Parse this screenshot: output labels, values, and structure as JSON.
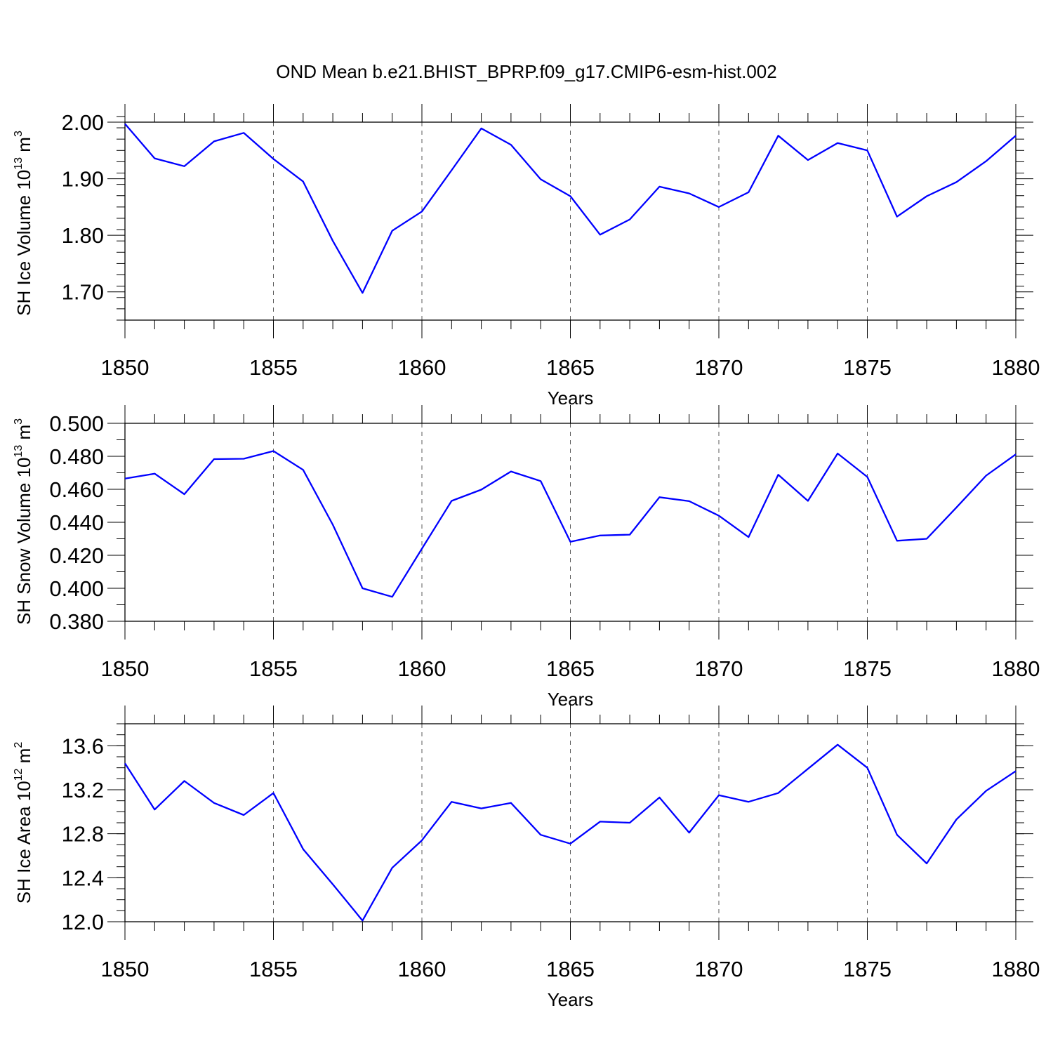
{
  "figure_title": "OND Mean b.e21.BHIST_BPRP.f09_g17.CMIP6-esm-hist.002",
  "chart_data": [
    {
      "type": "line",
      "title": "OND Mean b.e21.BHIST_BPRP.f09_g17.CMIP6-esm-hist.002",
      "xlabel": "Years",
      "ylabel": {
        "base": "SH Ice Volume 10",
        "exp": "13",
        "unit": " m",
        "unit_exp": "3"
      },
      "xlim": [
        1850,
        1880
      ],
      "ylim": [
        1.65,
        2.0
      ],
      "x_ticks": [
        1850,
        1855,
        1860,
        1865,
        1870,
        1875,
        1880
      ],
      "x_tick_labels": [
        "1850",
        "1855",
        "1860",
        "1865",
        "1870",
        "1875",
        "1880"
      ],
      "y_ticks": [
        1.7,
        1.8,
        1.9,
        2.0
      ],
      "y_tick_labels": [
        "1.70",
        "1.80",
        "1.90",
        "2.00"
      ],
      "grid": "dashed vertical lines every 5 years",
      "color": "#0000ff",
      "series": [
        {
          "name": "SH Ice Volume",
          "x": [
            1850,
            1851,
            1852,
            1853,
            1854,
            1855,
            1856,
            1857,
            1858,
            1859,
            1860,
            1861,
            1862,
            1863,
            1864,
            1865,
            1866,
            1867,
            1868,
            1869,
            1870,
            1871,
            1872,
            1873,
            1874,
            1875,
            1876,
            1877,
            1878,
            1879,
            1880
          ],
          "values": [
            1.997,
            1.936,
            1.922,
            1.966,
            1.981,
            1.935,
            1.895,
            1.79,
            1.698,
            1.808,
            1.842,
            1.915,
            1.989,
            1.96,
            1.899,
            1.869,
            1.801,
            1.828,
            1.886,
            1.874,
            1.85,
            1.876,
            1.976,
            1.933,
            1.963,
            1.95,
            1.833,
            1.869,
            1.894,
            1.931,
            1.976
          ]
        }
      ]
    },
    {
      "type": "line",
      "xlabel": "Years",
      "ylabel": {
        "base": "SH Snow Volume 10",
        "exp": "13",
        "unit": " m",
        "unit_exp": "3"
      },
      "xlim": [
        1850,
        1880
      ],
      "ylim": [
        0.38,
        0.5
      ],
      "x_ticks": [
        1850,
        1855,
        1860,
        1865,
        1870,
        1875,
        1880
      ],
      "x_tick_labels": [
        "1850",
        "1855",
        "1860",
        "1865",
        "1870",
        "1875",
        "1880"
      ],
      "y_ticks": [
        0.38,
        0.4,
        0.42,
        0.44,
        0.46,
        0.48,
        0.5
      ],
      "y_tick_labels": [
        "0.380",
        "0.400",
        "0.420",
        "0.440",
        "0.460",
        "0.480",
        "0.500"
      ],
      "grid": "dashed vertical lines every 5 years",
      "color": "#0000ff",
      "series": [
        {
          "name": "SH Snow Volume",
          "x": [
            1850,
            1851,
            1852,
            1853,
            1854,
            1855,
            1856,
            1857,
            1858,
            1859,
            1860,
            1861,
            1862,
            1863,
            1864,
            1865,
            1866,
            1867,
            1868,
            1869,
            1870,
            1871,
            1872,
            1873,
            1874,
            1875,
            1876,
            1877,
            1878,
            1879,
            1880
          ],
          "values": [
            0.4665,
            0.4695,
            0.457,
            0.4783,
            0.4785,
            0.4832,
            0.4718,
            0.4385,
            0.4,
            0.3948,
            0.424,
            0.453,
            0.4598,
            0.4708,
            0.465,
            0.4282,
            0.432,
            0.4325,
            0.4552,
            0.4528,
            0.444,
            0.431,
            0.4688,
            0.453,
            0.4817,
            0.4675,
            0.4288,
            0.43,
            0.449,
            0.4683,
            0.4812
          ]
        }
      ]
    },
    {
      "type": "line",
      "xlabel": "Years",
      "ylabel": {
        "base": "SH Ice Area 10",
        "exp": "12",
        "unit": " m",
        "unit_exp": "2"
      },
      "xlim": [
        1850,
        1880
      ],
      "ylim": [
        12.0,
        13.8
      ],
      "x_ticks": [
        1850,
        1855,
        1860,
        1865,
        1870,
        1875,
        1880
      ],
      "x_tick_labels": [
        "1850",
        "1855",
        "1860",
        "1865",
        "1870",
        "1875",
        "1880"
      ],
      "y_ticks": [
        12.0,
        12.4,
        12.8,
        13.2,
        13.6
      ],
      "y_tick_labels": [
        "12.0",
        "12.4",
        "12.8",
        "13.2",
        "13.6"
      ],
      "grid": "dashed vertical lines every 5 years",
      "color": "#0000ff",
      "series": [
        {
          "name": "SH Ice Area",
          "x": [
            1850,
            1851,
            1852,
            1853,
            1854,
            1855,
            1856,
            1857,
            1858,
            1859,
            1860,
            1861,
            1862,
            1863,
            1864,
            1865,
            1866,
            1867,
            1868,
            1869,
            1870,
            1871,
            1872,
            1873,
            1874,
            1875,
            1876,
            1877,
            1878,
            1879,
            1880
          ],
          "values": [
            13.44,
            13.02,
            13.28,
            13.08,
            12.97,
            13.17,
            12.66,
            12.34,
            12.01,
            12.49,
            12.74,
            13.09,
            13.03,
            13.08,
            12.79,
            12.71,
            12.91,
            12.9,
            13.13,
            12.81,
            13.15,
            13.09,
            13.17,
            13.39,
            13.61,
            13.4,
            12.79,
            12.53,
            12.93,
            13.19,
            13.37
          ]
        }
      ]
    }
  ]
}
